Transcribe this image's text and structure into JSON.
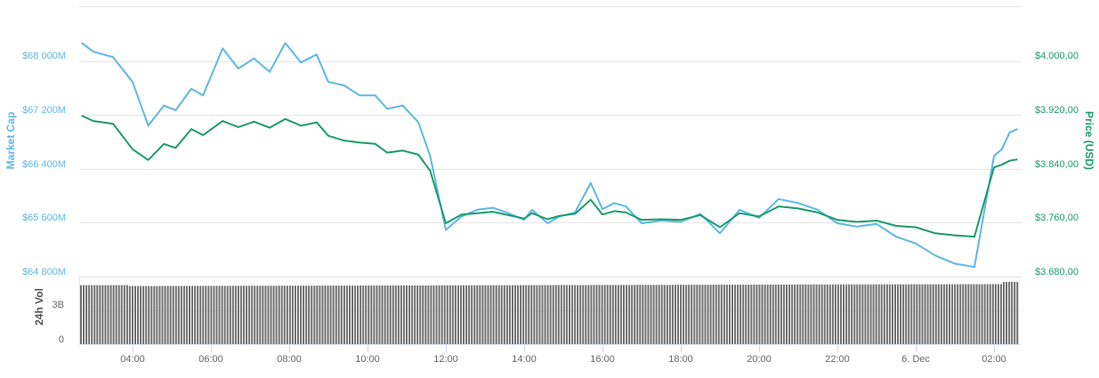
{
  "chart_data": {
    "type": "line",
    "title": "",
    "x_range": [
      "~02:40 5 Dec",
      "~02:40 6 Dec"
    ],
    "x_ticks": [
      "04:00",
      "06:00",
      "08:00",
      "10:00",
      "12:00",
      "14:00",
      "16:00",
      "18:00",
      "20:00",
      "22:00",
      "6. Dec",
      "02:00"
    ],
    "left_axis": {
      "label": "Market Cap",
      "ticks": [
        "$64 800M",
        "$65 600M",
        "$66 400M",
        "$67 200M",
        "$68 000M"
      ],
      "range": [
        64800,
        68600
      ],
      "color": "#5db8e6"
    },
    "right_axis": {
      "label": "Price (USD)",
      "ticks": [
        "$3.680,00",
        "$3.760,00",
        "$3.840,00",
        "$3.920,00",
        "$4.000,00"
      ],
      "range": [
        3680,
        4060
      ],
      "color": "#1a9d6a"
    },
    "volume_axis": {
      "label": "24h Vol",
      "ticks": [
        "0",
        "3B"
      ],
      "color": "#777777"
    },
    "grid": true,
    "legend": "none",
    "series": [
      {
        "name": "Market Cap",
        "axis": "left",
        "unit": "USD millions",
        "color": "#5db8e6",
        "x_hours_from_0300": [
          -0.3,
          0.0,
          0.5,
          1.0,
          1.4,
          1.8,
          2.1,
          2.5,
          2.8,
          3.3,
          3.7,
          4.1,
          4.5,
          4.9,
          5.3,
          5.7,
          6.0,
          6.4,
          6.8,
          7.2,
          7.5,
          7.9,
          8.3,
          8.6,
          9.0,
          9.4,
          9.8,
          10.2,
          10.6,
          11.0,
          11.2,
          11.6,
          11.9,
          12.3,
          12.7,
          13.0,
          13.3,
          13.6,
          14.0,
          14.5,
          15.0,
          15.5,
          16.0,
          16.5,
          17.0,
          17.5,
          18.0,
          18.5,
          19.0,
          19.5,
          20.0,
          20.5,
          21.0,
          21.5,
          22.0,
          22.5,
          23.0,
          23.2,
          23.4,
          23.6
        ],
        "values": [
          68280,
          68150,
          68070,
          67700,
          67050,
          67350,
          67280,
          67600,
          67500,
          68200,
          67900,
          68050,
          67850,
          68280,
          67990,
          68110,
          67700,
          67650,
          67500,
          67500,
          67300,
          67350,
          67100,
          66600,
          65500,
          65700,
          65800,
          65830,
          65750,
          65650,
          65800,
          65600,
          65700,
          65760,
          66200,
          65810,
          65900,
          65850,
          65600,
          65640,
          65620,
          65740,
          65450,
          65800,
          65680,
          65960,
          65900,
          65800,
          65600,
          65550,
          65590,
          65400,
          65300,
          65120,
          65000,
          64950,
          66600,
          66700,
          66950,
          67000
        ]
      },
      {
        "name": "Price (USD)",
        "axis": "right",
        "unit": "USD",
        "color": "#1a9d6a",
        "x_hours_from_0300": [
          -0.3,
          0.0,
          0.5,
          1.0,
          1.4,
          1.8,
          2.1,
          2.5,
          2.8,
          3.3,
          3.7,
          4.1,
          4.5,
          4.9,
          5.3,
          5.7,
          6.0,
          6.4,
          6.8,
          7.2,
          7.5,
          7.9,
          8.3,
          8.6,
          9.0,
          9.4,
          9.8,
          10.2,
          10.6,
          11.0,
          11.2,
          11.6,
          11.9,
          12.3,
          12.7,
          13.0,
          13.3,
          13.6,
          14.0,
          14.5,
          15.0,
          15.5,
          16.0,
          16.5,
          17.0,
          17.5,
          18.0,
          18.5,
          19.0,
          19.5,
          20.0,
          20.5,
          21.0,
          21.5,
          22.0,
          22.5,
          23.0,
          23.2,
          23.4,
          23.6
        ],
        "values": [
          3920,
          3912,
          3908,
          3870,
          3854,
          3878,
          3872,
          3900,
          3891,
          3912,
          3903,
          3911,
          3902,
          3915,
          3905,
          3910,
          3890,
          3883,
          3880,
          3878,
          3865,
          3868,
          3862,
          3838,
          3760,
          3773,
          3775,
          3777,
          3772,
          3767,
          3775,
          3766,
          3771,
          3774,
          3795,
          3773,
          3778,
          3776,
          3765,
          3766,
          3765,
          3772,
          3754,
          3775,
          3770,
          3785,
          3782,
          3776,
          3765,
          3762,
          3764,
          3756,
          3754,
          3745,
          3742,
          3740,
          3843,
          3847,
          3853,
          3855
        ]
      },
      {
        "name": "24h Vol",
        "axis": "volume",
        "type": "bar",
        "color": "#707070",
        "unit": "USD billions",
        "approx_values_billions": "≈ 5.4 to 5.9 (bars nearly flat, slight rise toward the end)",
        "start_value": 5.5,
        "end_value": 5.9
      }
    ]
  }
}
